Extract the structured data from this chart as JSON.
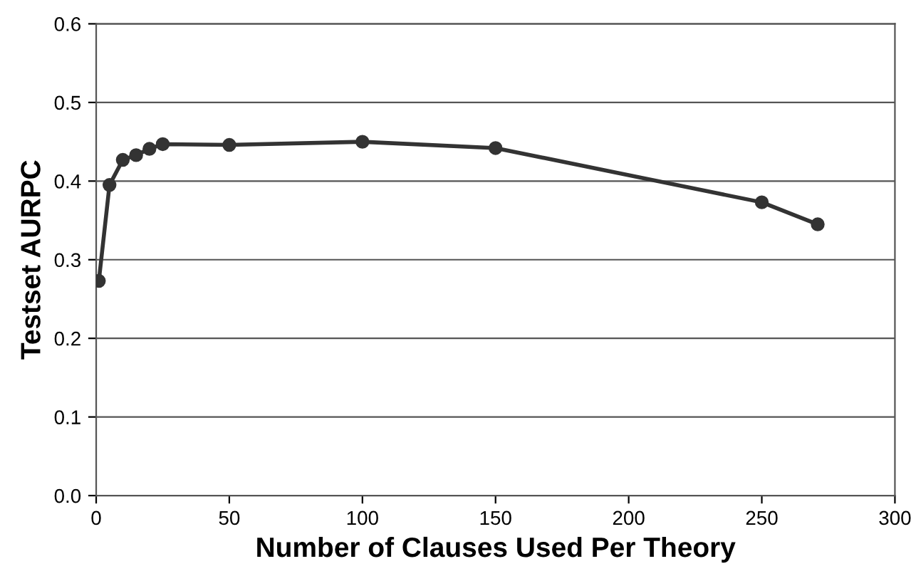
{
  "chart_data": {
    "type": "line",
    "xlabel": "Number of Clauses Used Per Theory",
    "ylabel": "Testset AURPC",
    "x": [
      1,
      5,
      10,
      15,
      20,
      25,
      50,
      100,
      150,
      250,
      271
    ],
    "series": [
      {
        "color": "#333333",
        "values": [
          0.273,
          0.395,
          0.427,
          0.433,
          0.441,
          0.447,
          0.446,
          0.45,
          0.442,
          0.373,
          0.345
        ]
      }
    ],
    "xlim": [
      0,
      300
    ],
    "xticks": [
      0,
      50,
      100,
      150,
      200,
      250,
      300
    ],
    "ylim": [
      0,
      0.6
    ],
    "yticks": [
      {
        "value": 0,
        "label": "0.0"
      },
      0.1,
      0.2,
      0.3,
      0.4,
      0.5,
      0.6
    ],
    "grid": "y",
    "marker": "circle",
    "line_style": "solid"
  }
}
